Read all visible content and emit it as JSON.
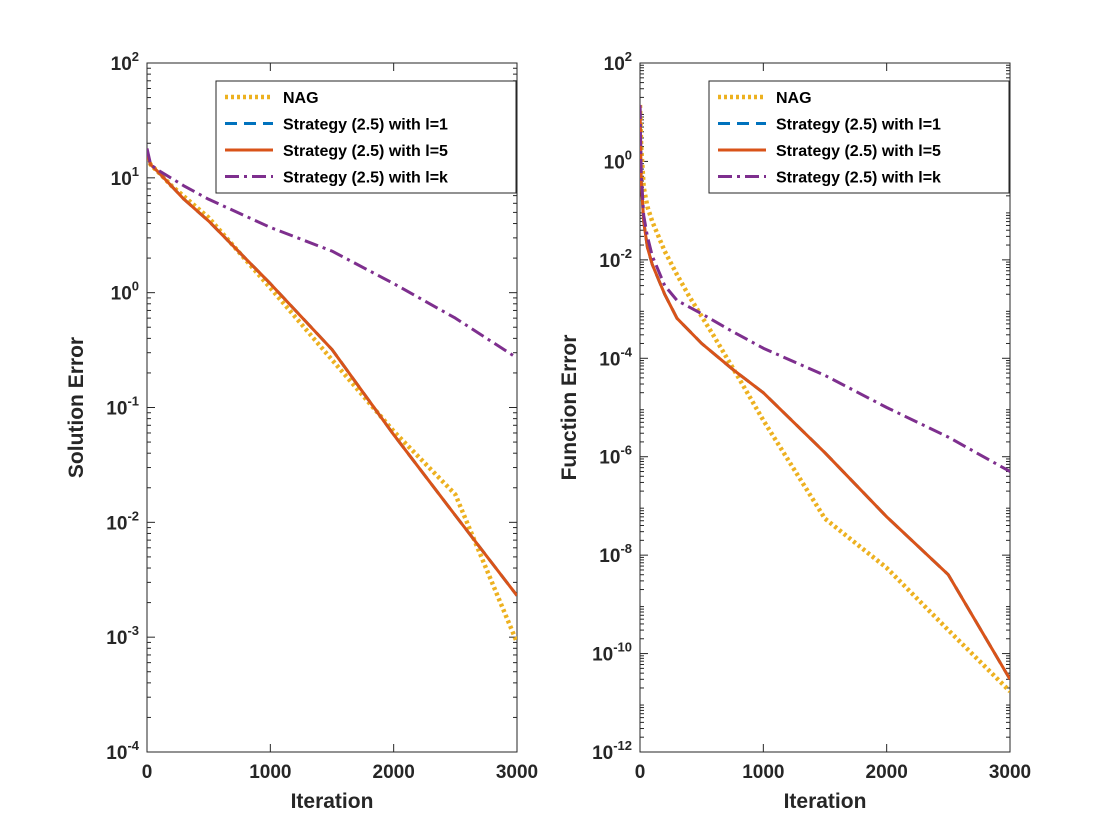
{
  "chart_data": [
    {
      "type": "line",
      "title": "",
      "xlabel": "Iteration",
      "ylabel": "Solution Error",
      "xlim": [
        0,
        3000
      ],
      "ylim_exponent": [
        -4,
        2
      ],
      "yscale": "log",
      "xticks": [
        "0",
        "1000",
        "2000",
        "3000"
      ],
      "yticks": [
        {
          "base": "10",
          "exp": "2"
        },
        {
          "base": "10",
          "exp": "1"
        },
        {
          "base": "10",
          "exp": "0"
        },
        {
          "base": "10",
          "exp": "-1"
        },
        {
          "base": "10",
          "exp": "-2"
        },
        {
          "base": "10",
          "exp": "-3"
        },
        {
          "base": "10",
          "exp": "-4"
        }
      ],
      "grid": false,
      "legend_position": "top-right",
      "series": [
        {
          "name": "NAG",
          "color": "#EDB120",
          "style": "dotted",
          "x": [
            0,
            30,
            100,
            200,
            500,
            1000,
            1500,
            2000,
            2500,
            3000
          ],
          "y": [
            15,
            13,
            11,
            8.5,
            4.5,
            1.1,
            0.26,
            0.062,
            0.0175,
            0.0009
          ]
        },
        {
          "name": "Strategy (2.5) with l=1",
          "color": "#0072BD",
          "style": "dashed",
          "x": [
            0,
            30,
            100,
            300,
            500,
            1000,
            1500,
            2000,
            2500,
            3000
          ],
          "y": [
            16,
            13,
            11,
            6.5,
            4.2,
            1.2,
            0.32,
            0.058,
            0.0115,
            0.0023
          ]
        },
        {
          "name": "Strategy (2.5) with l=5",
          "color": "#D95319",
          "style": "solid",
          "x": [
            0,
            30,
            100,
            300,
            500,
            1000,
            1500,
            2000,
            2500,
            3000
          ],
          "y": [
            16,
            13,
            11,
            6.5,
            4.2,
            1.2,
            0.32,
            0.058,
            0.0115,
            0.0023
          ]
        },
        {
          "name": "Strategy (2.5) with l=k",
          "color": "#7E2F8E",
          "style": "dashdot",
          "x": [
            0,
            30,
            100,
            300,
            500,
            1000,
            1500,
            2000,
            2500,
            3000
          ],
          "y": [
            18,
            13,
            11.5,
            8.5,
            6.5,
            3.7,
            2.3,
            1.2,
            0.6,
            0.27
          ]
        }
      ]
    },
    {
      "type": "line",
      "title": "",
      "xlabel": "Iteration",
      "ylabel": "Function Error",
      "xlim": [
        0,
        3000
      ],
      "ylim_exponent": [
        -12,
        2
      ],
      "yscale": "log",
      "xticks": [
        "0",
        "1000",
        "2000",
        "3000"
      ],
      "yticks": [
        {
          "base": "10",
          "exp": "2"
        },
        {
          "base": "10",
          "exp": "0"
        },
        {
          "base": "10",
          "exp": "-2"
        },
        {
          "base": "10",
          "exp": "-4"
        },
        {
          "base": "10",
          "exp": "-6"
        },
        {
          "base": "10",
          "exp": "-8"
        },
        {
          "base": "10",
          "exp": "-10"
        },
        {
          "base": "10",
          "exp": "-12"
        }
      ],
      "grid": false,
      "legend_position": "top-right",
      "series": [
        {
          "name": "NAG",
          "color": "#EDB120",
          "style": "dotted",
          "x": [
            0,
            10,
            30,
            60,
            100,
            200,
            300,
            400,
            600,
            800,
            1000,
            1500,
            2000,
            2500,
            3000
          ],
          "y": [
            14,
            2,
            0.3,
            0.12,
            0.06,
            0.015,
            0.005,
            0.0018,
            0.00028,
            4e-05,
            5.5e-06,
            5.5e-08,
            5.5e-09,
            3e-10,
            1.7e-11
          ]
        },
        {
          "name": "Strategy (2.5) with l=1",
          "color": "#0072BD",
          "style": "dashed",
          "x": [
            0,
            10,
            30,
            60,
            100,
            200,
            300,
            500,
            750,
            1000,
            1500,
            2000,
            2500,
            3000
          ],
          "y": [
            14,
            0.4,
            0.06,
            0.018,
            0.008,
            0.002,
            0.00065,
            0.0002,
            6e-05,
            2e-05,
            1.2e-06,
            6e-08,
            4e-09,
            3e-11
          ]
        },
        {
          "name": "Strategy (2.5) with l=5",
          "color": "#D95319",
          "style": "solid",
          "x": [
            0,
            10,
            30,
            60,
            100,
            200,
            300,
            500,
            750,
            1000,
            1500,
            2000,
            2500,
            3000
          ],
          "y": [
            14,
            0.4,
            0.06,
            0.018,
            0.008,
            0.002,
            0.00065,
            0.0002,
            6e-05,
            2e-05,
            1.2e-06,
            6e-08,
            4e-09,
            3e-11
          ]
        },
        {
          "name": "Strategy (2.5) with l=k",
          "color": "#7E2F8E",
          "style": "dashdot",
          "x": [
            0,
            10,
            30,
            60,
            100,
            200,
            300,
            500,
            750,
            1000,
            1500,
            2000,
            2500,
            3000
          ],
          "y": [
            14,
            0.6,
            0.08,
            0.03,
            0.012,
            0.003,
            0.0015,
            0.0008,
            0.00035,
            0.00016,
            4.5e-05,
            1e-05,
            2.5e-06,
            5e-07
          ]
        }
      ]
    }
  ]
}
